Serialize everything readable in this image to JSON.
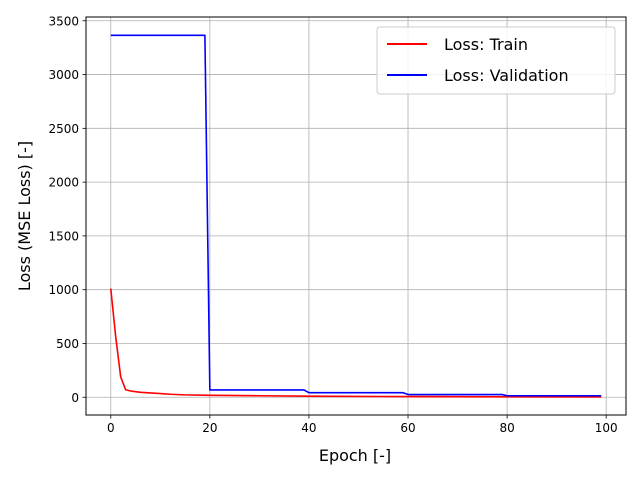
{
  "chart_data": {
    "type": "line",
    "title": "",
    "xlabel": "Epoch [-]",
    "ylabel": "Loss (MSE Loss) [-]",
    "xlim": [
      -5,
      104
    ],
    "ylim": [
      -165,
      3535
    ],
    "xticks": [
      0,
      20,
      40,
      60,
      80,
      100
    ],
    "yticks": [
      0,
      500,
      1000,
      1500,
      2000,
      2500,
      3000,
      3500
    ],
    "grid": true,
    "legend_position": "top-right",
    "series": [
      {
        "name": "Loss: Train",
        "color": "#ff0000",
        "x": [
          0,
          1,
          2,
          3,
          4,
          5,
          6,
          8,
          10,
          12,
          15,
          20,
          30,
          40,
          60,
          80,
          99
        ],
        "y": [
          1010,
          560,
          190,
          70,
          58,
          52,
          46,
          40,
          34,
          28,
          22,
          18,
          14,
          10,
          6,
          4,
          3
        ]
      },
      {
        "name": "Loss: Validation",
        "color": "#0000ff",
        "x": [
          0,
          19,
          20,
          39,
          40,
          59,
          60,
          79,
          80,
          99
        ],
        "y": [
          3365,
          3365,
          68,
          68,
          42,
          42,
          25,
          25,
          14,
          14
        ]
      }
    ]
  }
}
